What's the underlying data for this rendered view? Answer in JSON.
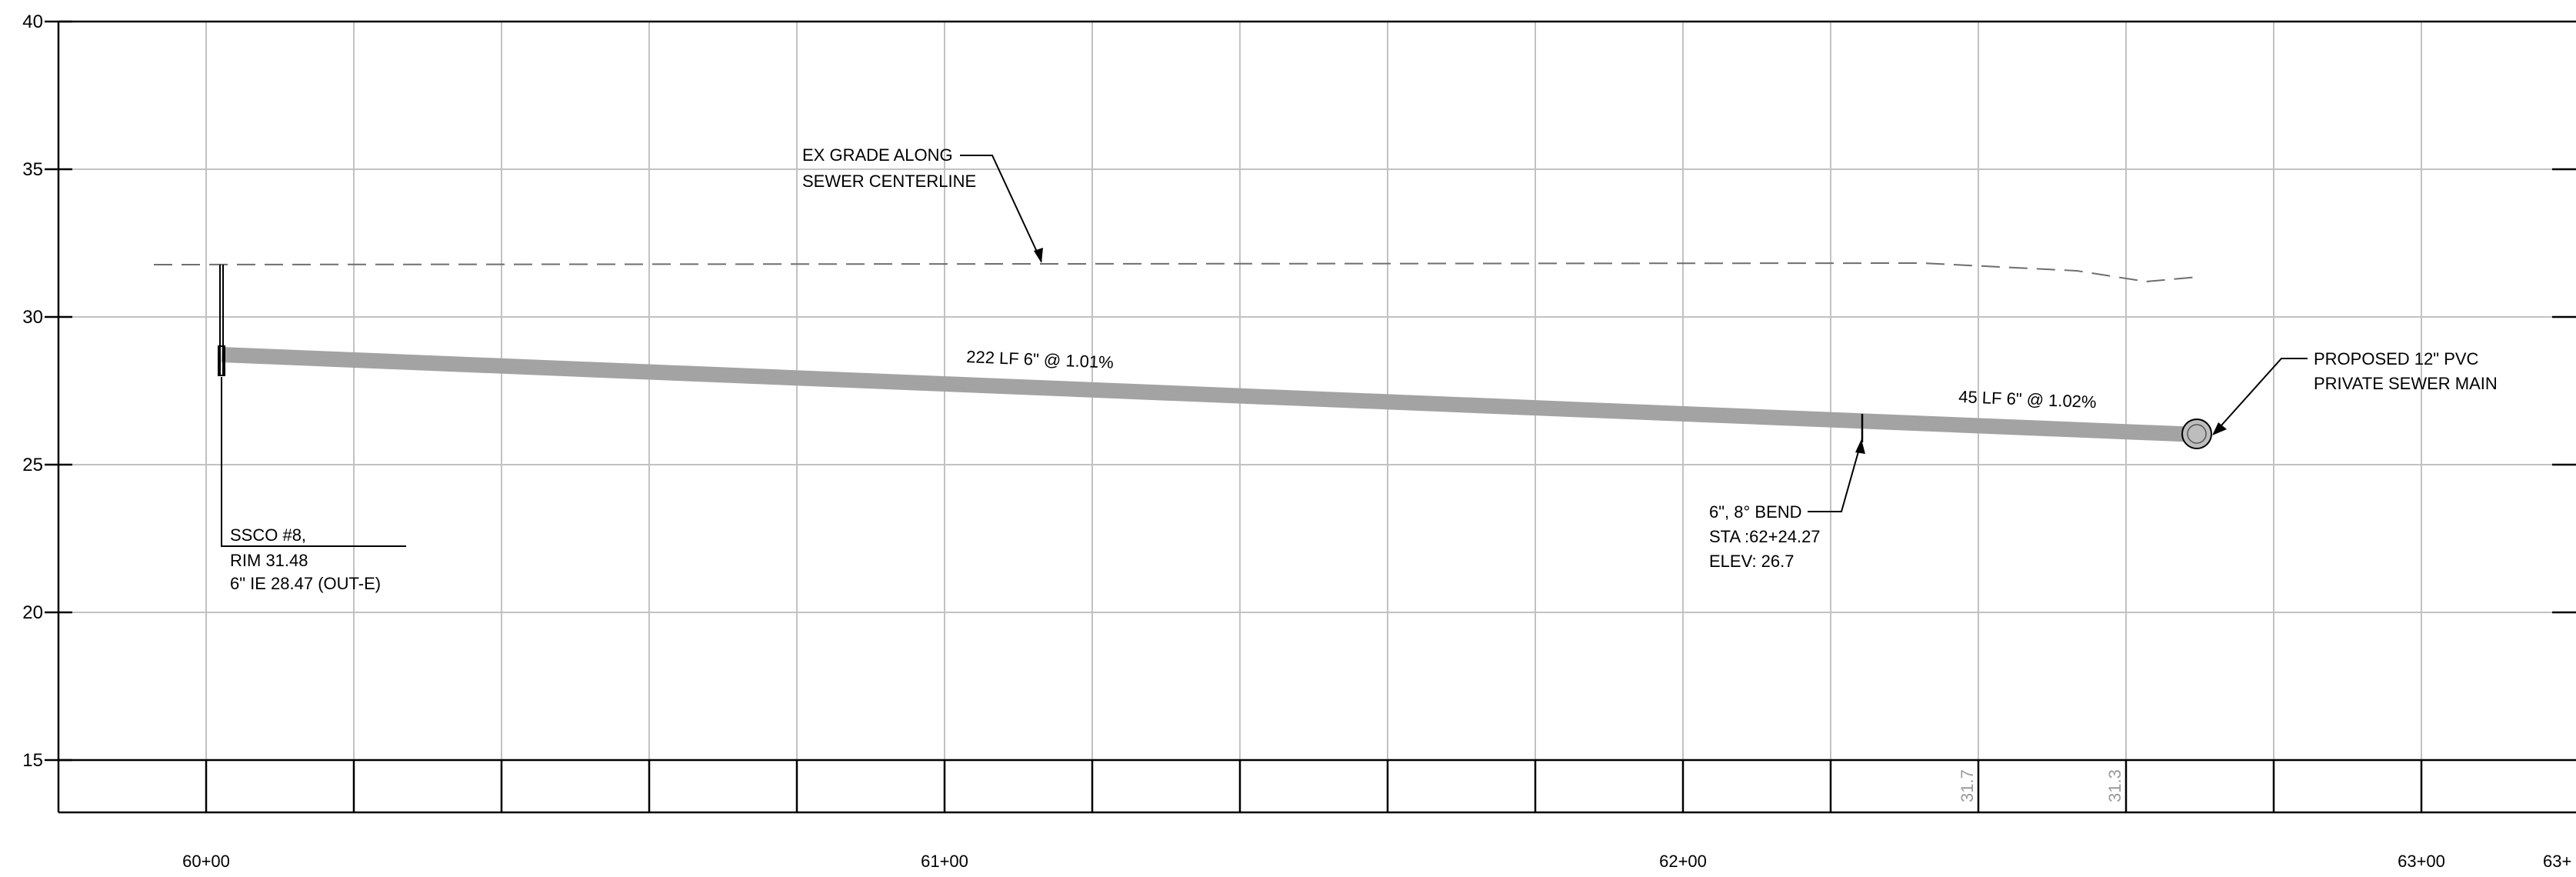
{
  "axes": {
    "y_ticks": [
      "40",
      "35",
      "30",
      "25",
      "20",
      "15"
    ],
    "x_ticks": [
      "60+00",
      "61+00",
      "62+00",
      "63+00",
      "63+"
    ]
  },
  "grade_band_values": [
    "31.7",
    "31.3"
  ],
  "annotations": {
    "ex_grade": {
      "line1": "EX GRADE ALONG",
      "line2": "SEWER CENTERLINE"
    },
    "pipe_segment_1": "222 LF 6\"  @ 1.01%",
    "pipe_segment_2": "45 LF 6\"  @ 1.02%",
    "ssco": {
      "line1": "SSCO #8,",
      "line2": "RIM 31.48",
      "line3": "6\" IE 28.47 (OUT-E)"
    },
    "bend": {
      "line1": "6\", 8° BEND",
      "line2": "STA :62+24.27",
      "line3": "ELEV: 26.7"
    },
    "proposed_main": {
      "line1": "PROPOSED 12\" PVC",
      "line2": "PRIVATE SEWER MAIN"
    }
  },
  "colors": {
    "pipe": "#a3a3a3",
    "grid": "#c2c2c2",
    "existing_grade": "#6e6e6e"
  }
}
